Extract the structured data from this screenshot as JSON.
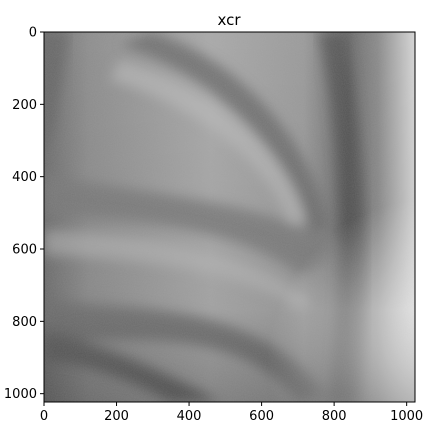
{
  "figure": {
    "title": "xcr",
    "image": {
      "description_kind": "grayscale chest x-ray crop (ribs)",
      "colormap": "gray"
    },
    "x_axis": {
      "ticks": [
        "0",
        "200",
        "400",
        "600",
        "800",
        "1000"
      ],
      "range": [
        0,
        1023
      ]
    },
    "y_axis": {
      "ticks": [
        "0",
        "200",
        "400",
        "600",
        "800",
        "1000"
      ],
      "range": [
        0,
        1023
      ],
      "inverted": true
    }
  }
}
